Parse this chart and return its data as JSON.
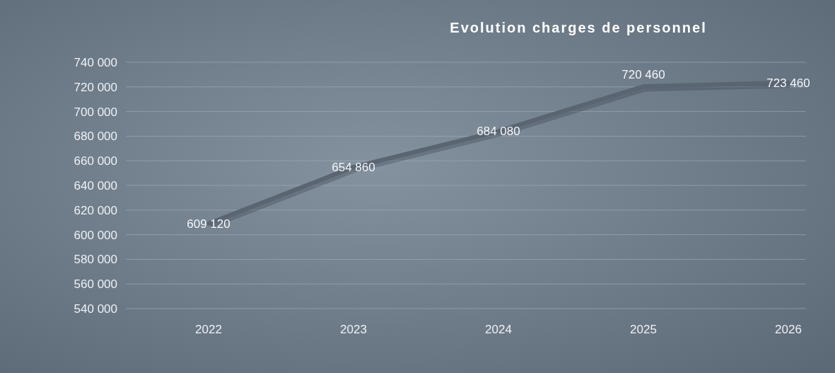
{
  "chart_data": {
    "type": "line",
    "title": "Evolution charges de personnel",
    "categories": [
      "2022",
      "2023",
      "2024",
      "2025",
      "2026"
    ],
    "values": [
      609120,
      654860,
      684080,
      720460,
      723460
    ],
    "color": "#5a6571",
    "ylim": [
      540000,
      740000
    ],
    "yticks": [
      {
        "value": 540000,
        "label": "540 000"
      },
      {
        "value": 560000,
        "label": "560 000"
      },
      {
        "value": 580000,
        "label": "580 000"
      },
      {
        "value": 600000,
        "label": "600 000"
      },
      {
        "value": 620000,
        "label": "620 000"
      },
      {
        "value": 640000,
        "label": "640 000"
      },
      {
        "value": 660000,
        "label": "660 000"
      },
      {
        "value": 680000,
        "label": "680 000"
      },
      {
        "value": 700000,
        "label": "700 000"
      },
      {
        "value": 720000,
        "label": "720 000"
      },
      {
        "value": 740000,
        "label": "740 000"
      }
    ],
    "value_labels": [
      "609 120",
      "654 860",
      "684 080",
      "720 460",
      "723 460"
    ],
    "grid": "y",
    "marker": "none",
    "line_style": "solid"
  }
}
